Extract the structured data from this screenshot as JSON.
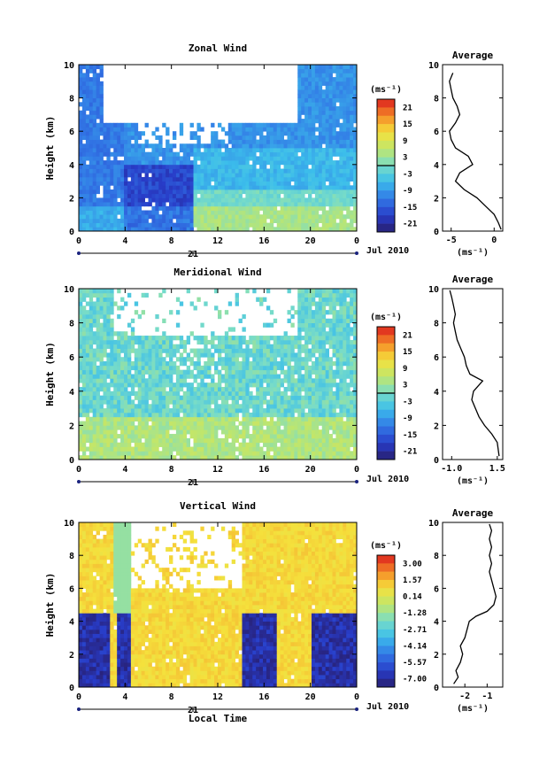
{
  "panels": [
    {
      "id": "zonal",
      "title": "Zonal Wind",
      "ylabel": "Height (km)",
      "unit": "(ms⁻¹)",
      "colorbar_ticks": [
        "21",
        "15",
        "9",
        "3",
        "-3",
        "-9",
        "-15",
        "-21"
      ],
      "avg_title": "Average",
      "avg_xlabel": "(ms⁻¹)",
      "avg_xticks": [
        "-5",
        "0"
      ],
      "date_label": "Jul 2010",
      "day_label": "21"
    },
    {
      "id": "meridional",
      "title": "Meridional Wind",
      "ylabel": "Height (km)",
      "unit": "(ms⁻¹)",
      "colorbar_ticks": [
        "21",
        "15",
        "9",
        "3",
        "-3",
        "-9",
        "-15",
        "-21"
      ],
      "avg_title": "Average",
      "avg_xlabel": "(ms⁻¹)",
      "avg_xticks": [
        "-1.0",
        "1.5"
      ],
      "date_label": "Jul 2010",
      "day_label": "21"
    },
    {
      "id": "vertical",
      "title": "Vertical Wind",
      "ylabel": "Height (km)",
      "unit": "(ms⁻¹)",
      "colorbar_ticks": [
        "3.00",
        "1.57",
        "0.14",
        "-1.28",
        "-2.71",
        "-4.14",
        "-5.57",
        "-7.00"
      ],
      "avg_title": "Average",
      "avg_xlabel": "(ms⁻¹)",
      "avg_xticks": [
        "-2",
        "-1"
      ],
      "date_label": "Jul 2010",
      "day_label": "21",
      "xlabel": "Local Time"
    }
  ],
  "chart_data": [
    {
      "type": "heatmap",
      "title": "Zonal Wind",
      "xlabel": "",
      "ylabel": "Height (km)",
      "x_ticks": [
        "0",
        "4",
        "8",
        "12",
        "16",
        "20",
        "0"
      ],
      "y_ticks": [
        "0",
        "2",
        "4",
        "6",
        "8",
        "10"
      ],
      "xlim": [
        0,
        24
      ],
      "ylim": [
        0,
        10
      ],
      "colorbar": {
        "unit": "(ms⁻¹)",
        "range": [
          -21,
          21
        ],
        "ticks": [
          21,
          15,
          9,
          3,
          -3,
          -9,
          -15,
          -21
        ]
      },
      "description_values": {
        "regions": [
          {
            "hours": [
              0,
              4
            ],
            "heights": [
              0,
              10
            ],
            "value": -10
          },
          {
            "hours": [
              4,
              10
            ],
            "heights": [
              0,
              4
            ],
            "value": -14
          },
          {
            "hours": [
              10,
              24
            ],
            "heights": [
              0,
              3
            ],
            "value": 0
          },
          {
            "hours": [
              10,
              24
            ],
            "heights": [
              3,
              6
            ],
            "value": -5
          },
          {
            "hours": [
              20,
              24
            ],
            "heights": [
              6,
              10
            ],
            "value": -9
          }
        ]
      }
    },
    {
      "type": "line",
      "title": "Average",
      "series_of": "Zonal Wind",
      "xlabel": "(ms⁻¹)",
      "x_ticks": [
        "-5",
        "0"
      ],
      "xlim": [
        -6,
        1
      ],
      "ylim": [
        0,
        10
      ],
      "points": [
        [
          0.8,
          0.1
        ],
        [
          0.5,
          0.5
        ],
        [
          0.0,
          1.0
        ],
        [
          -1.0,
          1.5
        ],
        [
          -2.0,
          2.0
        ],
        [
          -3.5,
          2.5
        ],
        [
          -4.5,
          3.0
        ],
        [
          -4.0,
          3.5
        ],
        [
          -2.5,
          4.0
        ],
        [
          -3.0,
          4.5
        ],
        [
          -4.5,
          5.0
        ],
        [
          -5.0,
          5.5
        ],
        [
          -5.2,
          6.0
        ],
        [
          -4.5,
          6.5
        ],
        [
          -4.0,
          7.0
        ],
        [
          -4.3,
          7.5
        ],
        [
          -4.8,
          8.0
        ],
        [
          -5.0,
          8.5
        ],
        [
          -5.2,
          9.0
        ],
        [
          -4.8,
          9.5
        ]
      ]
    },
    {
      "type": "heatmap",
      "title": "Meridional Wind",
      "xlabel": "",
      "ylabel": "Height (km)",
      "x_ticks": [
        "0",
        "4",
        "8",
        "12",
        "16",
        "20",
        "0"
      ],
      "y_ticks": [
        "0",
        "2",
        "4",
        "6",
        "8",
        "10"
      ],
      "xlim": [
        0,
        24
      ],
      "ylim": [
        0,
        10
      ],
      "colorbar": {
        "unit": "(ms⁻¹)",
        "range": [
          -21,
          21
        ],
        "ticks": [
          21,
          15,
          9,
          3,
          -3,
          -9,
          -15,
          -21
        ]
      },
      "description_values": {
        "regions": [
          {
            "hours": [
              0,
              24
            ],
            "heights": [
              0,
              3
            ],
            "value": 3
          },
          {
            "hours": [
              0,
              24
            ],
            "heights": [
              3,
              10
            ],
            "value": -3
          }
        ]
      }
    },
    {
      "type": "line",
      "title": "Average",
      "series_of": "Meridional Wind",
      "xlabel": "(ms⁻¹)",
      "x_ticks": [
        "-1.0",
        "1.5"
      ],
      "xlim": [
        -1.5,
        1.8
      ],
      "ylim": [
        0,
        10
      ],
      "points": [
        [
          1.6,
          0.2
        ],
        [
          1.5,
          1.0
        ],
        [
          1.2,
          1.5
        ],
        [
          0.8,
          2.0
        ],
        [
          0.5,
          2.5
        ],
        [
          0.3,
          3.0
        ],
        [
          0.1,
          3.5
        ],
        [
          0.2,
          4.0
        ],
        [
          0.7,
          4.6
        ],
        [
          0.0,
          5.0
        ],
        [
          -0.2,
          5.5
        ],
        [
          -0.3,
          6.0
        ],
        [
          -0.5,
          6.5
        ],
        [
          -0.7,
          7.0
        ],
        [
          -0.8,
          7.5
        ],
        [
          -0.9,
          8.0
        ],
        [
          -0.8,
          8.5
        ],
        [
          -0.9,
          9.0
        ],
        [
          -1.0,
          9.5
        ],
        [
          -1.1,
          9.9
        ]
      ]
    },
    {
      "type": "heatmap",
      "title": "Vertical Wind",
      "xlabel": "Local Time",
      "ylabel": "Height (km)",
      "x_ticks": [
        "0",
        "4",
        "8",
        "12",
        "16",
        "20",
        "0"
      ],
      "y_ticks": [
        "0",
        "2",
        "4",
        "6",
        "8",
        "10"
      ],
      "xlim": [
        0,
        24
      ],
      "ylim": [
        0,
        10
      ],
      "colorbar": {
        "unit": "(ms⁻¹)",
        "range": [
          -7,
          3
        ],
        "ticks": [
          3.0,
          1.57,
          0.14,
          -1.28,
          -2.71,
          -4.14,
          -5.57,
          -7.0
        ]
      },
      "description_values": {
        "regions": [
          {
            "hours": [
              0,
              3
            ],
            "heights": [
              0,
              4.5
            ],
            "value": -6.5
          },
          {
            "hours": [
              3.5,
              4.5
            ],
            "heights": [
              0,
              4.5
            ],
            "value": -6.0
          },
          {
            "hours": [
              14,
              17
            ],
            "heights": [
              0,
              4.5
            ],
            "value": -6.5
          },
          {
            "hours": [
              20,
              24
            ],
            "heights": [
              0,
              4.5
            ],
            "value": -6.5
          },
          {
            "hours": [
              4.5,
              14
            ],
            "heights": [
              0,
              6
            ],
            "value": 0.5
          }
        ]
      }
    },
    {
      "type": "line",
      "title": "Average",
      "series_of": "Vertical Wind",
      "xlabel": "(ms⁻¹)",
      "x_ticks": [
        "-2",
        "-1"
      ],
      "xlim": [
        -3,
        -0.3
      ],
      "ylim": [
        0,
        10
      ],
      "points": [
        [
          -2.5,
          0.2
        ],
        [
          -2.3,
          0.6
        ],
        [
          -2.4,
          1.0
        ],
        [
          -2.2,
          1.5
        ],
        [
          -2.1,
          2.0
        ],
        [
          -2.2,
          2.5
        ],
        [
          -2.0,
          3.0
        ],
        [
          -1.9,
          3.5
        ],
        [
          -1.8,
          4.0
        ],
        [
          -1.5,
          4.3
        ],
        [
          -1.0,
          4.6
        ],
        [
          -0.7,
          5.0
        ],
        [
          -0.6,
          5.5
        ],
        [
          -0.7,
          6.0
        ],
        [
          -0.8,
          6.5
        ],
        [
          -0.9,
          7.0
        ],
        [
          -0.8,
          7.5
        ],
        [
          -0.9,
          8.0
        ],
        [
          -0.8,
          8.5
        ],
        [
          -0.9,
          9.0
        ],
        [
          -0.8,
          9.5
        ],
        [
          -0.9,
          9.9
        ]
      ]
    }
  ]
}
